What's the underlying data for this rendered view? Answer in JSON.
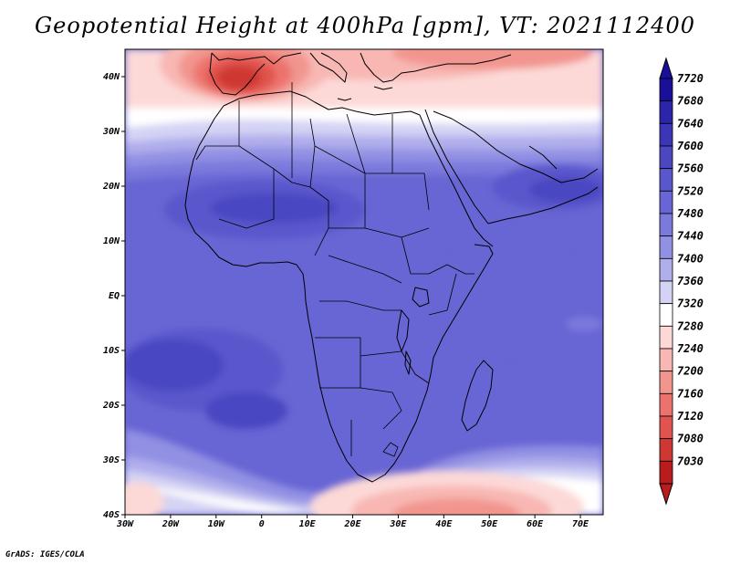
{
  "title": "Geopotential Height at 400hPa [gpm], VT: 2021112400",
  "credit": "GrADS: IGES/COLA",
  "map": {
    "projection": "latlon",
    "lon_range": [
      -30,
      75
    ],
    "lat_range": [
      -40,
      45
    ],
    "coastlines": true,
    "country_borders": true,
    "field": "geopotential height",
    "level_hPa": 400,
    "units": "gpm",
    "valid_time": "2021112400"
  },
  "axes": {
    "x_ticks": [
      {
        "value": -30,
        "label": "30W"
      },
      {
        "value": -20,
        "label": "20W"
      },
      {
        "value": -10,
        "label": "10W"
      },
      {
        "value": 0,
        "label": "0"
      },
      {
        "value": 10,
        "label": "10E"
      },
      {
        "value": 20,
        "label": "20E"
      },
      {
        "value": 30,
        "label": "30E"
      },
      {
        "value": 40,
        "label": "40E"
      },
      {
        "value": 50,
        "label": "50E"
      },
      {
        "value": 60,
        "label": "60E"
      },
      {
        "value": 70,
        "label": "70E"
      }
    ],
    "y_ticks": [
      {
        "value": 40,
        "label": "40N"
      },
      {
        "value": 30,
        "label": "30N"
      },
      {
        "value": 20,
        "label": "20N"
      },
      {
        "value": 10,
        "label": "10N"
      },
      {
        "value": 0,
        "label": "EQ"
      },
      {
        "value": -10,
        "label": "10S"
      },
      {
        "value": -20,
        "label": "20S"
      },
      {
        "value": -30,
        "label": "30S"
      },
      {
        "value": -40,
        "label": "40S"
      }
    ]
  },
  "colorbar": {
    "levels": [
      "7720",
      "7680",
      "7640",
      "7600",
      "7560",
      "7520",
      "7480",
      "7440",
      "7400",
      "7360",
      "7320",
      "7280",
      "7240",
      "7200",
      "7160",
      "7120",
      "7080",
      "7030"
    ],
    "colors": [
      "#1a0f99",
      "#2c25ac",
      "#3b36b7",
      "#4a47c1",
      "#5a57cc",
      "#6865d4",
      "#7b79dc",
      "#9290e3",
      "#b0aeeb",
      "#d4d3f4",
      "#ffffff",
      "#fcd9d7",
      "#f8b7b3",
      "#f2958f",
      "#ec736d",
      "#e0534e",
      "#cf3733",
      "#b81c1c"
    ]
  },
  "regions": [
    {
      "name": "iberian-trough",
      "value_range": "7030-7200",
      "center_lon": -4,
      "center_lat": 40
    },
    {
      "name": "mediterranean-trough",
      "value_range": "7240-7360",
      "center_lon": 20,
      "center_lat": 42
    },
    {
      "name": "southern-trough",
      "value_range": "7200-7360",
      "center_lon": 40,
      "center_lat": -38
    },
    {
      "name": "west-african-high",
      "value_range": "7600-7640",
      "center_lon": 0,
      "center_lat": 14
    },
    {
      "name": "arabian-high",
      "value_range": "7600-7640",
      "center_lon": 62,
      "center_lat": 20
    },
    {
      "name": "south-atlantic-high",
      "value_range": "7600-7640",
      "center_lon": -12,
      "center_lat": -15
    }
  ]
}
